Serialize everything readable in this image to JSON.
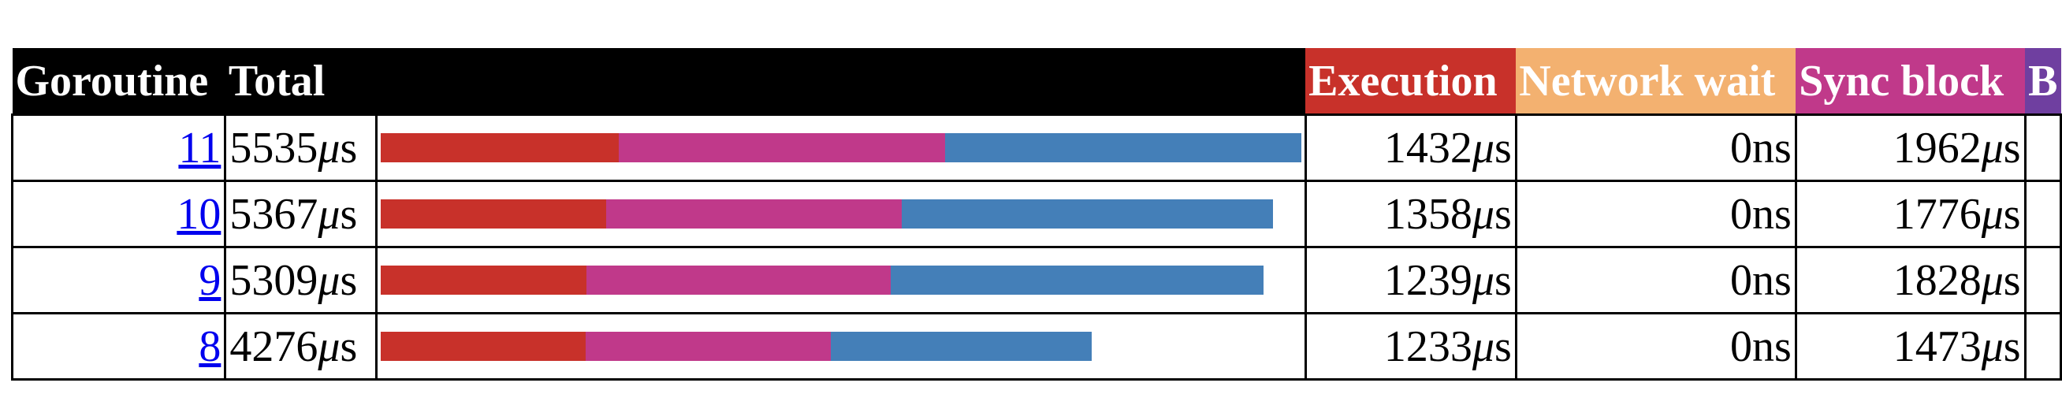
{
  "colors": {
    "execution": "#c8312a",
    "network_wait": "#f3b170",
    "sync_block": "#c0398a",
    "blocking_syscall": "#6f3fa0",
    "scheduler_wait": "#447fb8"
  },
  "bar_scale_max_us": 5535,
  "headers": {
    "goroutine": "Goroutine",
    "total": "Total",
    "execution": "Execution",
    "network_wait": "Network wait",
    "sync_block": "Sync block",
    "truncated": "B"
  },
  "rows": [
    {
      "id": "11",
      "total": "5535μs",
      "total_us": 5535,
      "execution": "1432μs",
      "execution_us": 1432,
      "network_wait": "0ns",
      "network_wait_us": 0,
      "sync_block": "1962μs",
      "sync_block_us": 1962
    },
    {
      "id": "10",
      "total": "5367μs",
      "total_us": 5367,
      "execution": "1358μs",
      "execution_us": 1358,
      "network_wait": "0ns",
      "network_wait_us": 0,
      "sync_block": "1776μs",
      "sync_block_us": 1776
    },
    {
      "id": "9",
      "total": "5309μs",
      "total_us": 5309,
      "execution": "1239μs",
      "execution_us": 1239,
      "network_wait": "0ns",
      "network_wait_us": 0,
      "sync_block": "1828μs",
      "sync_block_us": 1828
    },
    {
      "id": "8",
      "total": "4276μs",
      "total_us": 4276,
      "execution": "1233μs",
      "execution_us": 1233,
      "network_wait": "0ns",
      "network_wait_us": 0,
      "sync_block": "1473μs",
      "sync_block_us": 1473
    }
  ]
}
